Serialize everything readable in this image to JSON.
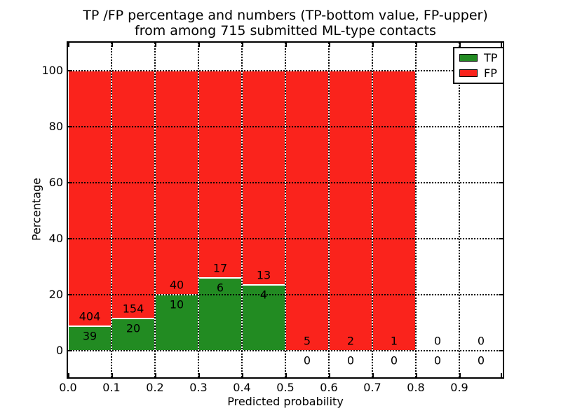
{
  "figure": {
    "title_line1": "TP /FP percentage and numbers (TP-bottom value, FP-upper)",
    "title_line2": "from among 715 submitted ML-type contacts"
  },
  "axes": {
    "xlabel": "Predicted probability",
    "ylabel": "Percentage",
    "xtick_labels": [
      "0.0",
      "0.1",
      "0.2",
      "0.3",
      "0.4",
      "0.5",
      "0.6",
      "0.7",
      "0.8",
      "0.9"
    ],
    "ytick_labels": [
      "0",
      "20",
      "40",
      "60",
      "80",
      "100"
    ]
  },
  "legend": {
    "items": [
      {
        "label": "TP",
        "color": "#228b22"
      },
      {
        "label": "FP",
        "color": "#fa231c"
      }
    ]
  },
  "chart_data": {
    "type": "bar",
    "variant": "stacked-normalized-percentage",
    "title": "TP /FP percentage and numbers (TP-bottom value, FP-upper) from among 715 submitted ML-type contacts",
    "xlabel": "Predicted probability",
    "ylabel": "Percentage",
    "categories": [
      "0.0-0.1",
      "0.1-0.2",
      "0.2-0.3",
      "0.3-0.4",
      "0.4-0.5",
      "0.5-0.6",
      "0.6-0.7",
      "0.7-0.8",
      "0.8-0.9",
      "0.9-1.0"
    ],
    "series": [
      {
        "name": "TP",
        "color": "#228b22",
        "counts": [
          39,
          20,
          10,
          6,
          4,
          0,
          0,
          0,
          0,
          0
        ]
      },
      {
        "name": "FP",
        "color": "#fa231c",
        "counts": [
          404,
          154,
          40,
          17,
          13,
          5,
          2,
          1,
          0,
          0
        ]
      }
    ],
    "tp_percent_of_bin": [
      8.8,
      11.5,
      20.0,
      26.1,
      23.5,
      0,
      0,
      0,
      0,
      0
    ],
    "bar_total_percent": 100,
    "xticks": [
      0.0,
      0.1,
      0.2,
      0.3,
      0.4,
      0.5,
      0.6,
      0.7,
      0.8,
      0.9
    ],
    "yticks": [
      0,
      20,
      40,
      60,
      80,
      100
    ],
    "xlim": [
      0.0,
      1.0
    ],
    "ylim": [
      -9.5,
      109.5
    ],
    "grid": "dotted both axes, drawn over bars",
    "legend_position": "upper right",
    "annotation_scheme": "FP count printed above each bin's TP/FP boundary, TP count printed below it"
  }
}
